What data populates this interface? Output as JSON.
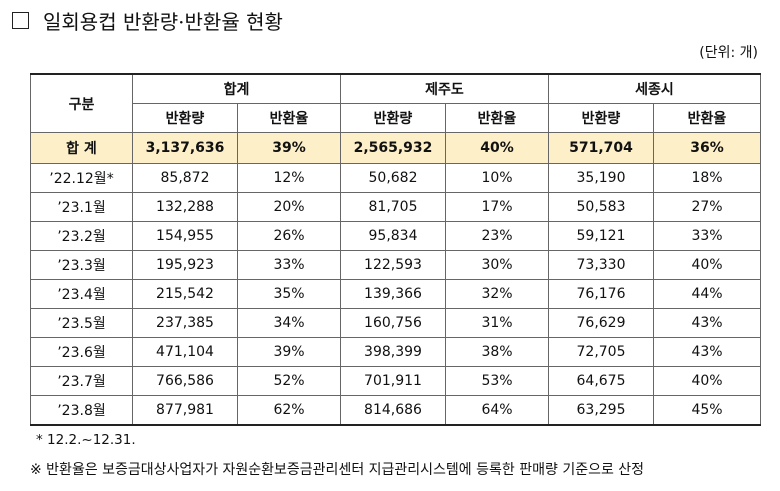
{
  "title": "일회용컵 반환량·반환율 현황",
  "unit": "(단위: 개)",
  "table": {
    "group_header": "구분",
    "groups": [
      "합계",
      "제주도",
      "세종시"
    ],
    "subheaders": [
      "반환량",
      "반환율",
      "반환량",
      "반환율",
      "반환량",
      "반환율"
    ],
    "total_row": [
      "합 계",
      "3,137,636",
      "39%",
      "2,565,932",
      "40%",
      "571,704",
      "36%"
    ],
    "rows": [
      [
        "’22.12월*",
        "85,872",
        "12%",
        "50,682",
        "10%",
        "35,190",
        "18%"
      ],
      [
        "’23.1월",
        "132,288",
        "20%",
        "81,705",
        "17%",
        "50,583",
        "27%"
      ],
      [
        "’23.2월",
        "154,955",
        "26%",
        "95,834",
        "23%",
        "59,121",
        "33%"
      ],
      [
        "’23.3월",
        "195,923",
        "33%",
        "122,593",
        "30%",
        "73,330",
        "40%"
      ],
      [
        "’23.4월",
        "215,542",
        "35%",
        "139,366",
        "32%",
        "76,176",
        "44%"
      ],
      [
        "’23.5월",
        "237,385",
        "34%",
        "160,756",
        "31%",
        "76,629",
        "43%"
      ],
      [
        "’23.6월",
        "471,104",
        "39%",
        "398,399",
        "38%",
        "72,705",
        "43%"
      ],
      [
        "’23.7월",
        "766,586",
        "52%",
        "701,911",
        "53%",
        "64,675",
        "40%"
      ],
      [
        "’23.8월",
        "877,981",
        "62%",
        "814,686",
        "64%",
        "63,295",
        "45%"
      ]
    ]
  },
  "footnotes": [
    "* 12.2.~12.31.",
    "※ 반환율은 보증금대상사업자가 자원순환보증금관리센터 지급관리시스템에 등록한 판매량 기준으로 산정"
  ]
}
